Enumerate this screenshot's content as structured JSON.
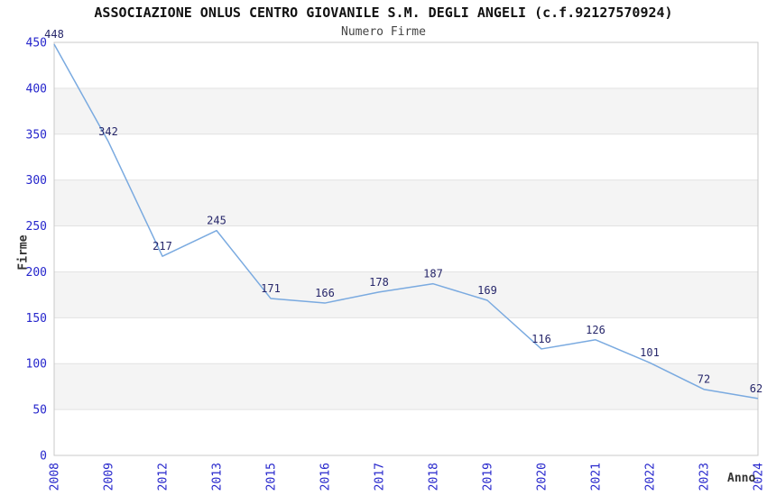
{
  "chart_data": {
    "type": "line",
    "title": "ASSOCIAZIONE ONLUS CENTRO GIOVANILE S.M. DEGLI ANGELI (c.f.92127570924)",
    "subtitle": "Numero Firme",
    "xlabel": "Anno",
    "ylabel": "Firme",
    "categories": [
      "2008",
      "2009",
      "2012",
      "2013",
      "2015",
      "2016",
      "2017",
      "2018",
      "2019",
      "2020",
      "2021",
      "2022",
      "2023",
      "2024"
    ],
    "values": [
      448,
      342,
      217,
      245,
      171,
      166,
      178,
      187,
      169,
      116,
      126,
      101,
      72,
      62
    ],
    "ylim": [
      0,
      450
    ],
    "ytick_step": 50,
    "yticks": [
      0,
      50,
      100,
      150,
      200,
      250,
      300,
      350,
      400,
      450
    ],
    "grid": "horizontal",
    "legend": "none",
    "data_labels_visible": true,
    "colors": {
      "line": "#7aaae0",
      "tick_label": "#2626cc",
      "data_label": "#26266a",
      "band": "#f4f4f4",
      "gridline": "#e2e2e2",
      "axis": "#c8c8c8",
      "title": "#111111",
      "subtitle": "#444444",
      "axis_title": "#333333",
      "background": "#ffffff"
    }
  }
}
